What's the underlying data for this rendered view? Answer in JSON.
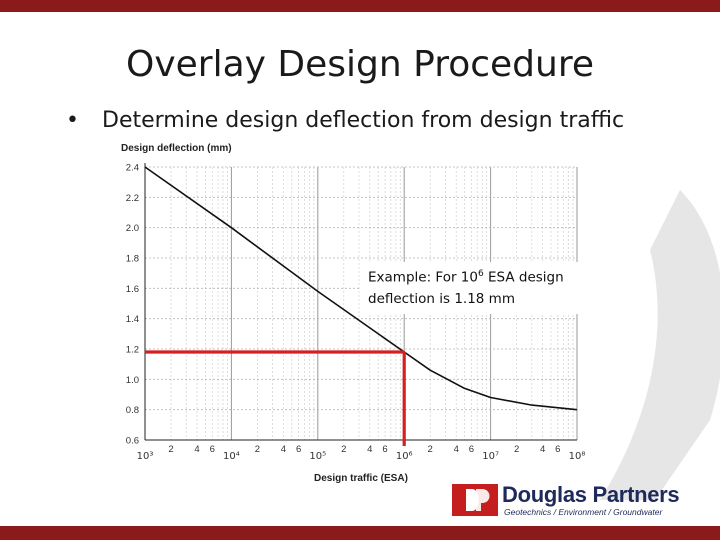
{
  "slide": {
    "title": "Overlay Design Procedure",
    "bullet": "Determine design deflection from design traffic",
    "callout_prefix": "Example: For 10",
    "callout_exp": "6",
    "callout_mid": " ESA design",
    "callout_line2": "deflection is 1.18 mm"
  },
  "logo": {
    "name": "Douglas Partners",
    "tagline": "Geotechnics  /  Environment  /  Groundwater"
  },
  "colors": {
    "banner": "#8b1a1a",
    "highlight": "#d42020",
    "curve": "#111111"
  },
  "chart_data": {
    "type": "line",
    "title": "",
    "ylabel": "Design deflection (mm)",
    "xlabel": "Design traffic (ESA)",
    "x_scale": "log",
    "xlim": [
      1000,
      100000000
    ],
    "ylim": [
      0.6,
      2.4
    ],
    "y_ticks": [
      "0.6",
      "0.8",
      "1.0",
      "1.2",
      "1.4",
      "1.6",
      "1.8",
      "2.0",
      "2.2",
      "2.4"
    ],
    "x_decade_labels": [
      "10³",
      "10⁴",
      "10⁵",
      "10⁶",
      "10⁷",
      "10⁸"
    ],
    "x_minor_labels": [
      "2",
      "4",
      "6"
    ],
    "grid": true,
    "series": [
      {
        "x": [
          1000,
          10000,
          100000,
          1000000,
          2000000,
          5000000,
          10000000,
          30000000,
          100000000
        ],
        "y": [
          2.4,
          2.0,
          1.58,
          1.18,
          1.06,
          0.94,
          0.88,
          0.83,
          0.8
        ]
      }
    ],
    "annotation": {
      "x": 1000000,
      "y": 1.18
    }
  }
}
